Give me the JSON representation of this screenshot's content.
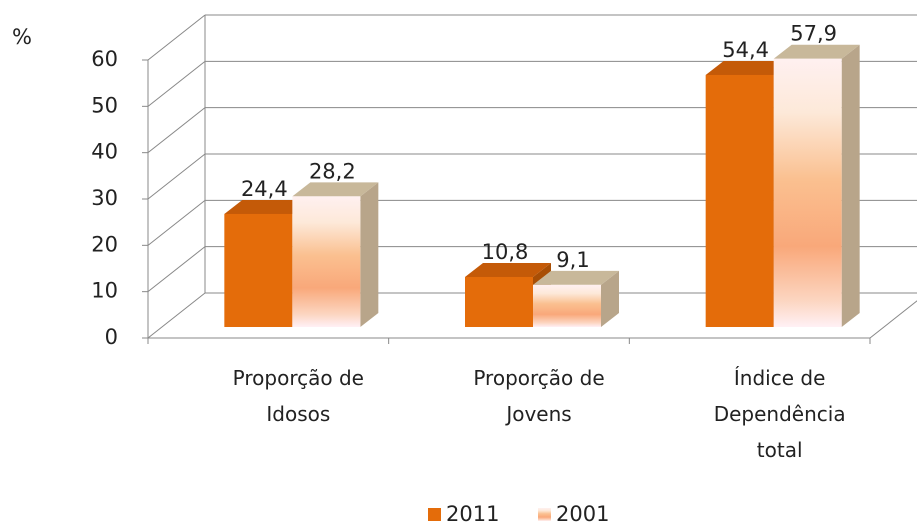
{
  "chart_data": {
    "type": "bar3d",
    "y_label": "%",
    "categories": [
      "Proporção de Idosos",
      "Proporção de Jovens",
      "Índice de Dependência total"
    ],
    "series": [
      {
        "name": "2011",
        "color": "#e46c0a",
        "values": [
          24.4,
          10.8,
          54.4
        ],
        "value_labels": [
          "24,4",
          "10,8",
          "54,4"
        ]
      },
      {
        "name": "2001",
        "color": "#fac090",
        "values": [
          28.2,
          9.1,
          57.9
        ],
        "value_labels": [
          "28,2",
          "9,1",
          "57,9"
        ]
      }
    ],
    "ylim": [
      0,
      60
    ],
    "yticks": [
      0,
      10,
      20,
      30,
      40,
      50,
      60
    ],
    "grid": true,
    "legend": "bottom"
  }
}
